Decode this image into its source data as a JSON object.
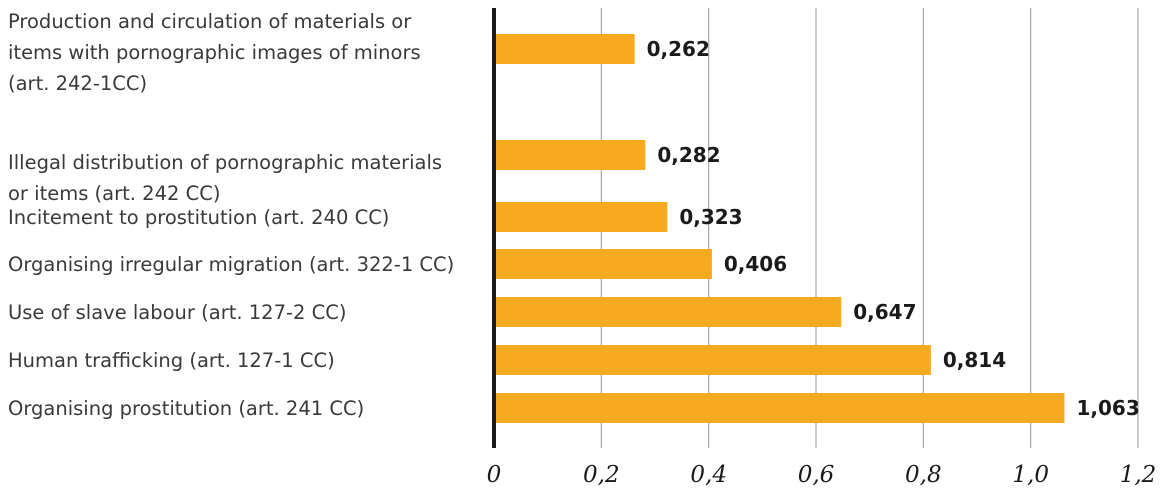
{
  "chart_data": {
    "type": "bar",
    "orientation": "horizontal",
    "categories": [
      [
        "Production and circulation of materials or",
        "items with pornographic images of minors",
        "(art. 242-1CC)"
      ],
      [
        "Illegal distribution of pornographic materials",
        "or items (art. 242 CC)"
      ],
      [
        "Incitement to prostitution (art. 240 CC)"
      ],
      [
        "Organising irregular migration (art. 322-1 CC)"
      ],
      [
        "Use of slave labour (art. 127-2 CC)"
      ],
      [
        "Human trafficking (art. 127-1 CC)"
      ],
      [
        "Organising prostitution (art. 241 CC)"
      ]
    ],
    "values": [
      0.262,
      0.282,
      0.323,
      0.406,
      0.647,
      0.814,
      1.063
    ],
    "value_labels": [
      "0,262",
      "0,282",
      "0,323",
      "0,406",
      "0,647",
      "0,814",
      "1,063"
    ],
    "xlim": [
      0,
      1.2
    ],
    "xticks": [
      0,
      0.2,
      0.4,
      0.6,
      0.8,
      1.0,
      1.2
    ],
    "xtick_labels": [
      "0",
      "0,2",
      "0,4",
      "0,6",
      "0,8",
      "1,0",
      "1,2"
    ],
    "title": "",
    "xlabel": "",
    "ylabel": "",
    "grid": "vertical",
    "legend": "none",
    "bar_color": "#F7A91F",
    "axis_color": "#1a1a1a",
    "grid_color": "#a8a8a8",
    "text_color": "#3a3a3a"
  }
}
